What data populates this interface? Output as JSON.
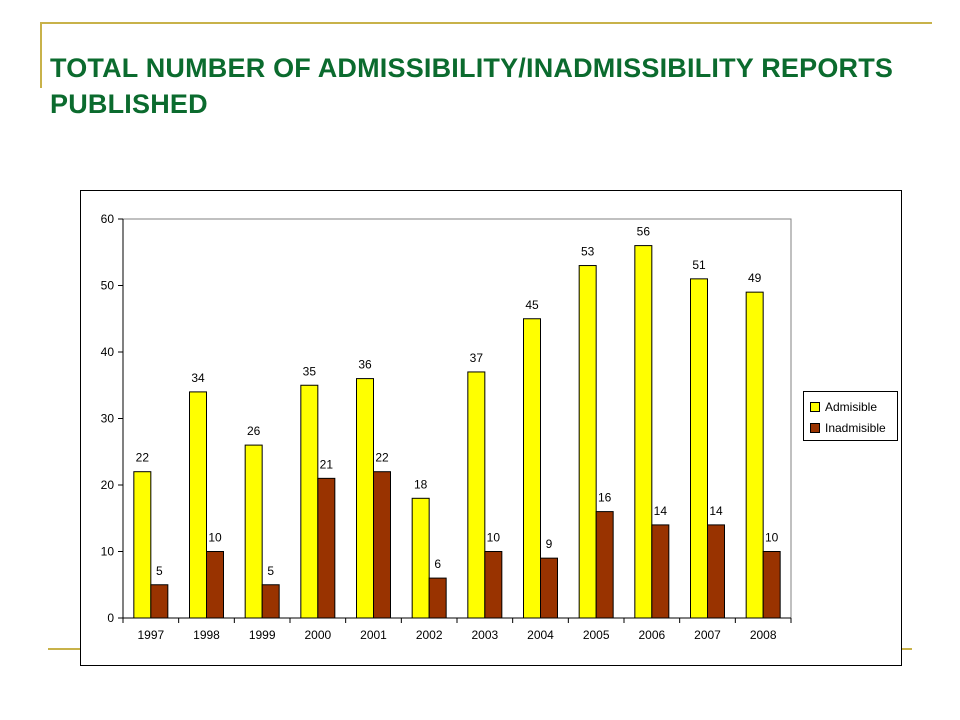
{
  "title": "TOTAL NUMBER OF ADMISSIBILITY/INADMISSIBILITY REPORTS PUBLISHED",
  "colors": {
    "title": "#0b6b2e",
    "accent_lines": "#c8b24a",
    "admisible": "#ffff00",
    "inadmisible": "#993300"
  },
  "chart_data": {
    "type": "bar",
    "categories": [
      "1997",
      "1998",
      "1999",
      "2000",
      "2001",
      "2002",
      "2003",
      "2004",
      "2005",
      "2006",
      "2007",
      "2008"
    ],
    "series": [
      {
        "name": "Admisible",
        "color": "#ffff00",
        "values": [
          22,
          34,
          26,
          35,
          36,
          18,
          37,
          45,
          53,
          56,
          51,
          49
        ]
      },
      {
        "name": "Inadmisible",
        "color": "#993300",
        "values": [
          5,
          10,
          5,
          21,
          22,
          6,
          10,
          9,
          16,
          14,
          14,
          10
        ]
      }
    ],
    "ylim": [
      0,
      60
    ],
    "yticks": [
      0,
      10,
      20,
      30,
      40,
      50,
      60
    ],
    "grid": false,
    "legend_position": "right",
    "data_labels": true
  },
  "legend": {
    "admisible_label": "Admisible",
    "inadmisible_label": "Inadmisible"
  }
}
